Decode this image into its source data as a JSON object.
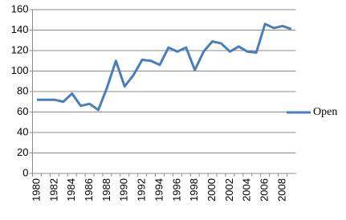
{
  "chart_data": {
    "type": "line",
    "categories": [
      "1980",
      null,
      "1982",
      null,
      "1984",
      null,
      "1986",
      null,
      "1988",
      null,
      "1990",
      null,
      "1992",
      null,
      "1994",
      null,
      "1996",
      null,
      "1998",
      null,
      "2000",
      null,
      "2002",
      null,
      "2004",
      null,
      "2006",
      null,
      "2008",
      null
    ],
    "series": [
      {
        "name": "Open",
        "color": "#4a7ebb",
        "values": [
          72,
          72,
          72,
          70,
          78,
          66,
          68,
          62,
          84,
          110,
          85,
          96,
          111,
          110,
          106,
          123,
          119,
          123,
          101,
          119,
          129,
          127,
          119,
          124,
          119,
          118,
          146,
          142,
          144,
          141
        ]
      }
    ],
    "ylim": [
      0,
      160
    ],
    "yticks": [
      0,
      20,
      40,
      60,
      80,
      100,
      120,
      140,
      160
    ],
    "grid": true,
    "legend": "right"
  }
}
